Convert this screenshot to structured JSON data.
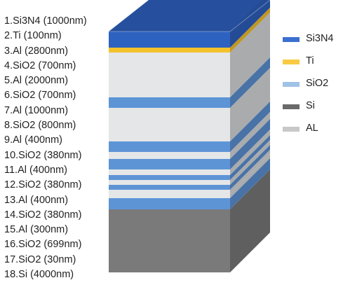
{
  "layers": [
    {
      "label": "1.Si3N4 (1000nm)",
      "material": "Si3N4"
    },
    {
      "label": "2.Ti (100nm)",
      "material": "Ti"
    },
    {
      "label": "3.Al (2800nm)",
      "material": "AL"
    },
    {
      "label": "4.SiO2 (700nm)",
      "material": "SiO2"
    },
    {
      "label": "5.Al (2000nm)",
      "material": "AL"
    },
    {
      "label": "6.SiO2 (700nm)",
      "material": "SiO2"
    },
    {
      "label": "7.Al (1000nm)",
      "material": "AL"
    },
    {
      "label": "8.SiO2 (800nm)",
      "material": "SiO2"
    },
    {
      "label": "9.Al (400nm)",
      "material": "AL"
    },
    {
      "label": "10.SiO2 (380nm)",
      "material": "SiO2"
    },
    {
      "label": "11.Al (400nm)",
      "material": "AL"
    },
    {
      "label": "12.SiO2 (380nm)",
      "material": "SiO2"
    },
    {
      "label": "13.Al (400nm)",
      "material": "AL"
    },
    {
      "label": "14.SiO2 (380nm)",
      "material": "SiO2"
    },
    {
      "label": "15.Al (300nm)",
      "material": "AL"
    },
    {
      "label": "16.SiO2 (699nm)",
      "material": "SiO2"
    },
    {
      "label": "17.SiO2 (30nm)",
      "material": "SiO2"
    },
    {
      "label": "18.Si (4000nm)",
      "material": "Si"
    }
  ],
  "legend": [
    {
      "label": "Si3N4",
      "material": "Si3N4"
    },
    {
      "label": "Ti",
      "material": "Ti"
    },
    {
      "label": "SiO2",
      "material": "SiO2"
    },
    {
      "label": "Si",
      "material": "Si"
    },
    {
      "label": "AL",
      "material": "AL"
    }
  ],
  "material_colors": {
    "Si3N4": "#2e62c0",
    "Ti": "#f6c22c",
    "SiO2": "#5d94d6",
    "Si": "#7a7a7a",
    "AL": "#e4e6e8"
  },
  "legend_colors": {
    "Si3N4": "#3b6fd0",
    "Ti": "#f9cb43",
    "SiO2": "#9fc2e6",
    "Si": "#6a6a6a",
    "AL": "#c8c8c8"
  }
}
